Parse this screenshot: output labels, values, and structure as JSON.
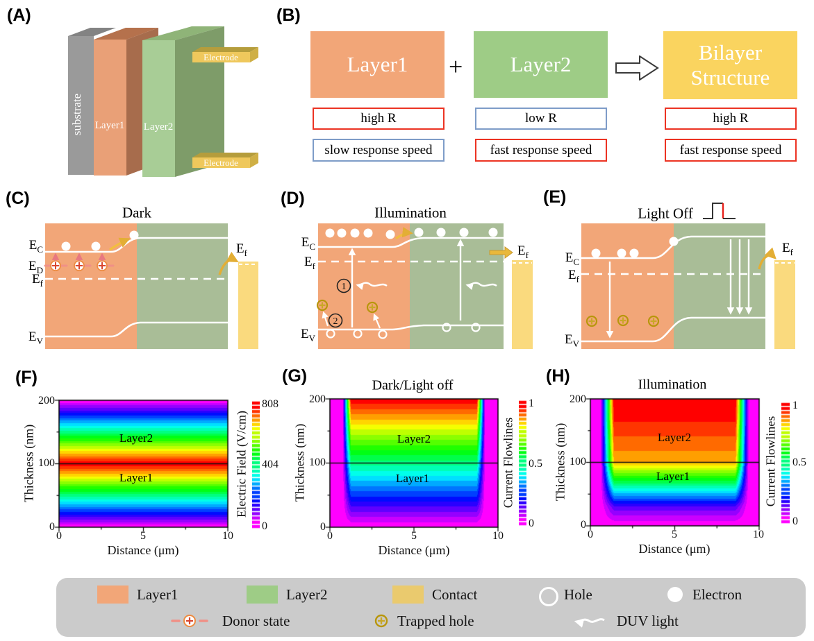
{
  "figure": {
    "background": "#ffffff"
  },
  "colors": {
    "layer1_orange": "#F2A678",
    "layer2_green_bright": "#9ECC86",
    "layer2_green_band": "#A9BD97",
    "bilayer_yellow": "#FAD45F",
    "contact_gold": "#FADA7E",
    "contact_swatch": "#EACA6E",
    "electrode_gold": "#EFC85C",
    "electrode_dark": "#B59D3C",
    "substrate_gray": "#9A9A9A",
    "legend_bg": "#CBCBCB",
    "red_box_border": "#EC3323",
    "blue_box_border": "#7E9CC8",
    "arrow_gold": "#E9B83B",
    "donor_salmon": "#F09086",
    "trapped_gold": "#B8960C",
    "pulse_red": "#E8201A"
  },
  "panels": {
    "A": {
      "label": "(A)",
      "substrate": "substrate",
      "layer1": "Layer1",
      "layer2": "Layer2",
      "electrode_top": "Electrode",
      "electrode_bottom": "Electrode"
    },
    "B": {
      "label": "(B)",
      "layer1": "Layer1",
      "plus": "+",
      "layer2": "Layer2",
      "result_line1": "Bilayer",
      "result_line2": "Structure",
      "layer1_props": [
        {
          "text": "high R",
          "style": "red"
        },
        {
          "text": "slow response speed",
          "style": "blue"
        }
      ],
      "layer2_props": [
        {
          "text": "low R",
          "style": "blue"
        },
        {
          "text": "fast response speed",
          "style": "red"
        }
      ],
      "result_props": [
        {
          "text": "high R",
          "style": "red"
        },
        {
          "text": "fast response speed",
          "style": "red"
        }
      ]
    },
    "C": {
      "label": "(C)",
      "title": "Dark",
      "ec": {
        "main": "E",
        "sub": "C"
      },
      "ed": {
        "main": "E",
        "sub": "D"
      },
      "ef": {
        "main": "E",
        "sub": "f"
      },
      "ev": {
        "main": "E",
        "sub": "V"
      },
      "contact_ef": {
        "main": "E",
        "sub": "f"
      }
    },
    "D": {
      "label": "(D)",
      "title": "Illumination",
      "ec": {
        "main": "E",
        "sub": "C"
      },
      "ef": {
        "main": "E",
        "sub": "f"
      },
      "ev": {
        "main": "E",
        "sub": "V"
      },
      "contact_ef": {
        "main": "E",
        "sub": "f"
      },
      "step1": "1",
      "step2": "2"
    },
    "E": {
      "label": "(E)",
      "title": "Light Off",
      "ec": {
        "main": "E",
        "sub": "C"
      },
      "ef": {
        "main": "E",
        "sub": "f"
      },
      "ev": {
        "main": "E",
        "sub": "V"
      },
      "contact_ef": {
        "main": "E",
        "sub": "f"
      }
    },
    "F": {
      "label": "(F)"
    },
    "G": {
      "label": "(G)"
    },
    "H": {
      "label": "(H)"
    }
  },
  "legend": {
    "row1": [
      {
        "label": "Layer1"
      },
      {
        "label": "Layer2"
      },
      {
        "label": "Contact"
      },
      {
        "label": "Hole"
      },
      {
        "label": "Electron"
      }
    ],
    "row2": [
      {
        "label": "Donor state"
      },
      {
        "label": "Trapped hole"
      },
      {
        "label": "DUV light"
      }
    ]
  },
  "chart_data": [
    {
      "id": "F",
      "type": "heatmap",
      "title": "",
      "xlabel": "Distance (μm)",
      "ylabel": "Thickness (nm)",
      "xlim": [
        0,
        10
      ],
      "ylim": [
        0,
        200
      ],
      "xticks": [
        "0",
        "5",
        "10"
      ],
      "yticks": [
        "200",
        "100",
        "0"
      ],
      "grid": false,
      "colorbar": {
        "label": "Electric Field (V/cm)",
        "min": 0,
        "max": 808,
        "ticks": [
          "808",
          "404",
          "0"
        ]
      },
      "interface_y": 100,
      "uniform_in_x": true,
      "profile_thickness_vs_value": [
        [
          0,
          0
        ],
        [
          100,
          808
        ],
        [
          200,
          0
        ]
      ],
      "vmax": 808,
      "envelope": null,
      "annotations": [
        {
          "text": "Layer2",
          "y": 130
        },
        {
          "text": "Layer1",
          "y": 75
        }
      ]
    },
    {
      "id": "G",
      "type": "heatmap",
      "title": "Dark/Light off",
      "xlabel": "Distance (μm)",
      "ylabel": "Thickness (nm)",
      "xlim": [
        0,
        10
      ],
      "ylim": [
        0,
        200
      ],
      "xticks": [
        "0",
        "5",
        "10"
      ],
      "yticks": [
        "200",
        "100",
        "0"
      ],
      "grid": false,
      "colorbar": {
        "label": "Current Flowlines",
        "min": 0,
        "max": 1,
        "ticks": [
          "1",
          "0.5",
          "0"
        ]
      },
      "interface_y": 100,
      "uniform_in_x": false,
      "profile_thickness_vs_value": [
        [
          0,
          0
        ],
        [
          200,
          1
        ]
      ],
      "vmax": 1,
      "envelope": {
        "x0": 0.75,
        "x1": 9.25,
        "ramp": 0.5
      },
      "annotations": [
        {
          "text": "Layer2",
          "y": 135
        },
        {
          "text": "Layer1",
          "y": 72
        }
      ]
    },
    {
      "id": "H",
      "type": "heatmap",
      "title": "Illumination",
      "xlabel": "Distance (μm)",
      "ylabel": "Thickness (nm)",
      "xlim": [
        0,
        10
      ],
      "ylim": [
        0,
        200
      ],
      "xticks": [
        "0",
        "5",
        "10"
      ],
      "yticks": [
        "200",
        "100",
        "0"
      ],
      "grid": false,
      "colorbar": {
        "label": "Current Flowlines",
        "min": 0,
        "max": 1,
        "ticks": [
          "1",
          "0.5",
          "0"
        ]
      },
      "interface_y": 100,
      "uniform_in_x": false,
      "profile_thickness_vs_value": [
        [
          0,
          0
        ],
        [
          30,
          0.15
        ],
        [
          95,
          0.8
        ],
        [
          100,
          0.85
        ],
        [
          170,
          0.97
        ],
        [
          200,
          1
        ]
      ],
      "vmax": 1,
      "envelope": {
        "x0": 0.6,
        "x1": 9.4,
        "ramp": 0.8
      },
      "annotations": [
        {
          "text": "Layer2",
          "y": 135
        },
        {
          "text": "Layer1",
          "y": 70
        }
      ]
    }
  ]
}
